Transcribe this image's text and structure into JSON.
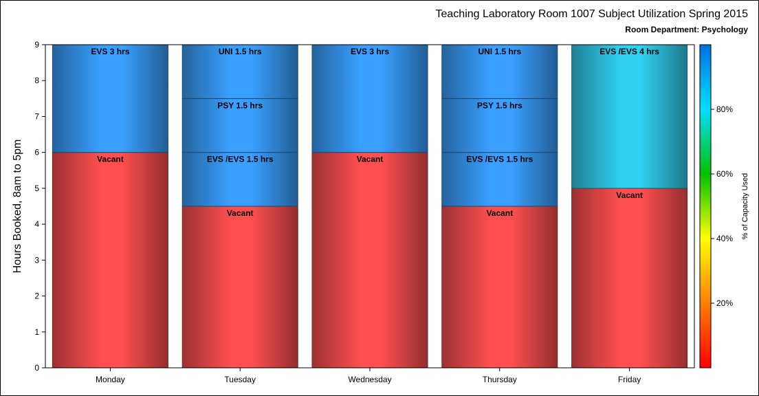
{
  "chart_data": {
    "type": "bar",
    "stacked": true,
    "title": "Teaching Laboratory Room 1007 Subject Utilization Spring 2015",
    "subtitle": "Room Department:  Psychology",
    "ylabel": "Hours Booked, 8am to 5pm",
    "xlabel": "",
    "ylim": [
      0,
      9
    ],
    "yticks": [
      "0",
      "1",
      "2",
      "3",
      "4",
      "5",
      "6",
      "7",
      "8",
      "9"
    ],
    "categories": [
      "Monday",
      "Tuesday",
      "Wednesday",
      "Thursday",
      "Friday"
    ],
    "bars": [
      {
        "category": "Monday",
        "segments": [
          {
            "label": "Vacant",
            "hours": 6,
            "color": "#ff4f4f"
          },
          {
            "label": "EVS 3 hrs",
            "hours": 3,
            "color": "#3aa0ff"
          }
        ]
      },
      {
        "category": "Tuesday",
        "segments": [
          {
            "label": "Vacant",
            "hours": 4.5,
            "color": "#ff4f4f"
          },
          {
            "label": "EVS /EVS 1.5 hrs",
            "hours": 1.5,
            "color": "#3aa0ff"
          },
          {
            "label": "PSY 1.5 hrs",
            "hours": 1.5,
            "color": "#3aa0ff"
          },
          {
            "label": "UNI 1.5 hrs",
            "hours": 1.5,
            "color": "#3aa0ff"
          }
        ]
      },
      {
        "category": "Wednesday",
        "segments": [
          {
            "label": "Vacant",
            "hours": 6,
            "color": "#ff4f4f"
          },
          {
            "label": "EVS 3 hrs",
            "hours": 3,
            "color": "#3aa0ff"
          }
        ]
      },
      {
        "category": "Thursday",
        "segments": [
          {
            "label": "Vacant",
            "hours": 4.5,
            "color": "#ff4f4f"
          },
          {
            "label": "EVS /EVS 1.5 hrs",
            "hours": 1.5,
            "color": "#3aa0ff"
          },
          {
            "label": "PSY 1.5 hrs",
            "hours": 1.5,
            "color": "#3aa0ff"
          },
          {
            "label": "UNI 1.5 hrs",
            "hours": 1.5,
            "color": "#3aa0ff"
          }
        ]
      },
      {
        "category": "Friday",
        "segments": [
          {
            "label": "Vacant",
            "hours": 5,
            "color": "#ff4f4f"
          },
          {
            "label": "EVS /EVS 4 hrs",
            "hours": 4,
            "color": "#30d0f0"
          }
        ]
      }
    ],
    "colorbar": {
      "title": "% of Capacity Used",
      "ticks": [
        "20%",
        "40%",
        "60%",
        "80%"
      ],
      "tick_values": [
        20,
        40,
        60,
        80
      ],
      "range": [
        0,
        100
      ],
      "colors": [
        "#ff0000",
        "#ff8000",
        "#ffff00",
        "#00c000",
        "#00e0ff",
        "#0070e0"
      ]
    },
    "grid": false,
    "legend": "colorbar-right"
  }
}
